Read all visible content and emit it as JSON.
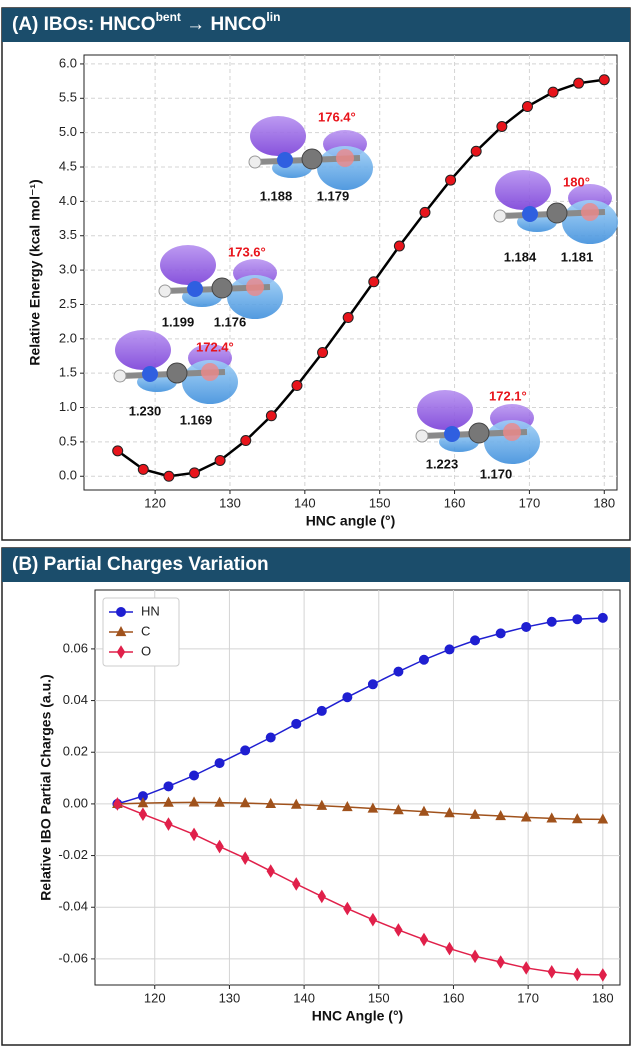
{
  "chart_data": [
    {
      "type": "line",
      "title": [
        "(A) IBOs: HNCO",
        "bent",
        " → HNCO",
        "lin"
      ],
      "xlabel": "HNC angle (°)",
      "ylabel": "Relative Energy (kcal mol⁻¹)",
      "x": [
        115,
        118.42,
        121.84,
        125.26,
        128.68,
        132.11,
        135.53,
        138.95,
        142.37,
        145.79,
        149.21,
        152.63,
        156.05,
        159.47,
        162.89,
        166.32,
        169.74,
        173.16,
        176.58,
        180
      ],
      "series": [
        {
          "color": "#000000",
          "marker": "circle",
          "marker_color": "#e8141b",
          "values": [
            0.37,
            0.1,
            0.0,
            0.05,
            0.23,
            0.52,
            0.88,
            1.32,
            1.8,
            2.31,
            2.83,
            3.35,
            3.84,
            4.31,
            4.73,
            5.09,
            5.38,
            5.59,
            5.72,
            5.77
          ]
        }
      ],
      "xlim": [
        110.5,
        181.7
      ],
      "ylim": [
        -0.2,
        6.13
      ],
      "xticks": [
        120,
        130,
        140,
        150,
        160,
        170,
        180
      ],
      "yticks": [
        {
          "value": 0,
          "label": "0.0"
        },
        0.5,
        {
          "value": 1,
          "label": "1.0"
        },
        1.5,
        {
          "value": 2,
          "label": "2.0"
        },
        2.5,
        {
          "value": 3,
          "label": "3.0"
        },
        3.5,
        {
          "value": 4,
          "label": "4.0"
        },
        4.5,
        {
          "value": 5,
          "label": "5.0"
        },
        5.5,
        {
          "value": 6,
          "label": "6.0"
        }
      ],
      "grid": "dashed",
      "annotations": [
        {
          "angle": "176.4°",
          "bonds": [
            "1.188",
            "1.179"
          ]
        },
        {
          "angle": "180°",
          "bonds": [
            "1.184",
            "1.181"
          ]
        },
        {
          "angle": "173.6°",
          "bonds": [
            "1.199",
            "1.176"
          ]
        },
        {
          "angle": "172.4°",
          "bonds": [
            "1.230",
            "1.169"
          ]
        },
        {
          "angle": "172.1°",
          "bonds": [
            "1.223",
            "1.170"
          ]
        }
      ]
    },
    {
      "type": "line",
      "title": [
        "(B) Partial Charges Variation"
      ],
      "xlabel": "HNC Angle (°)",
      "ylabel": "Relative IBO Partial Charges (a.u.)",
      "x": [
        115,
        118.42,
        121.84,
        125.26,
        128.68,
        132.11,
        135.53,
        138.95,
        142.37,
        145.79,
        149.21,
        152.63,
        156.05,
        159.47,
        162.89,
        166.32,
        169.74,
        173.16,
        176.58,
        180
      ],
      "series": [
        {
          "name": "HN",
          "color": "#1f1fd1",
          "marker": "circle",
          "values": [
            0,
            0.003,
            0.0068,
            0.011,
            0.0158,
            0.0207,
            0.0257,
            0.031,
            0.036,
            0.0413,
            0.0463,
            0.0512,
            0.0558,
            0.0598,
            0.0633,
            0.066,
            0.0685,
            0.0705,
            0.0715,
            0.072
          ]
        },
        {
          "name": "C",
          "color": "#a0521c",
          "marker": "triangle",
          "values": [
            0,
            0.0003,
            0.0005,
            0.0006,
            0.0005,
            0.0003,
            0,
            -0.0003,
            -0.0007,
            -0.0012,
            -0.0018,
            -0.0024,
            -0.003,
            -0.0036,
            -0.0042,
            -0.0047,
            -0.0052,
            -0.0056,
            -0.0059,
            -0.006
          ]
        },
        {
          "name": "O",
          "color": "#e0204a",
          "marker": "diamond",
          "values": [
            0,
            -0.004,
            -0.0078,
            -0.0118,
            -0.0165,
            -0.021,
            -0.026,
            -0.031,
            -0.0358,
            -0.0405,
            -0.0448,
            -0.0488,
            -0.0525,
            -0.056,
            -0.059,
            -0.0612,
            -0.0635,
            -0.065,
            -0.066,
            -0.0662
          ]
        }
      ],
      "xlim": [
        112.0,
        182.3
      ],
      "ylim": [
        -0.0701,
        0.0828
      ],
      "xticks": [
        120,
        130,
        140,
        150,
        160,
        170,
        180
      ],
      "yticks": [
        -0.06,
        -0.04,
        -0.02,
        {
          "value": 0,
          "label": "0.00"
        },
        0.02,
        0.04,
        0.06
      ],
      "grid": "solid",
      "legend": "upper left"
    }
  ]
}
